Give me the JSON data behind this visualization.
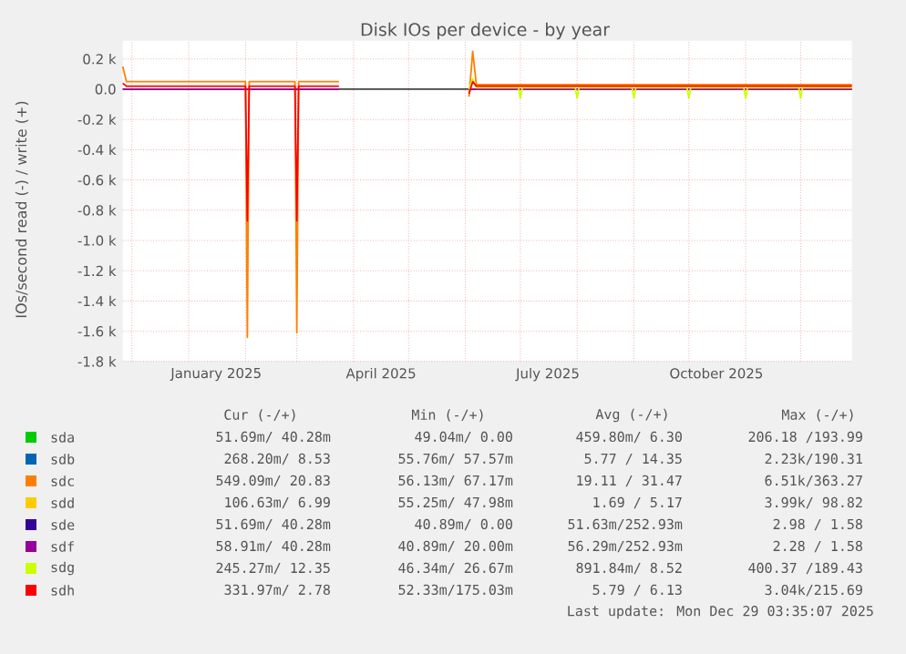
{
  "chart_data": {
    "type": "line",
    "title": "Disk IOs per device - by year",
    "ylabel": "IOs/second read (-) / write (+)",
    "xlim": [
      "2024-11-26",
      "2025-12-29"
    ],
    "ylim": [
      -1.8,
      0.32
    ],
    "xticks": [
      {
        "value": "2024-12-01",
        "label": null
      },
      {
        "value": "2025-01-01",
        "label": null
      },
      {
        "value": "2025-02-01",
        "label": null
      },
      {
        "value": "2025-03-01",
        "label": null
      },
      {
        "value": "2025-04-01",
        "label": null
      },
      {
        "value": "2025-05-01",
        "label": null
      },
      {
        "value": "2025-06-01",
        "label": null
      },
      {
        "value": "2025-07-01",
        "label": null
      },
      {
        "value": "2025-08-01",
        "label": null
      },
      {
        "value": "2025-09-01",
        "label": null
      },
      {
        "value": "2025-10-01",
        "label": null
      },
      {
        "value": "2025-11-01",
        "label": null
      },
      {
        "value": "2025-12-01",
        "label": null
      },
      {
        "value": "2025-01-16",
        "label": "January 2025"
      },
      {
        "value": "2025-04-16",
        "label": "April 2025"
      },
      {
        "value": "2025-07-16",
        "label": "July 2025"
      },
      {
        "value": "2025-10-16",
        "label": "October 2025"
      }
    ],
    "yticks": [
      {
        "value": -1.8,
        "label": "-1.8 k"
      },
      {
        "value": -1.6,
        "label": "-1.6 k"
      },
      {
        "value": -1.4,
        "label": "-1.4 k"
      },
      {
        "value": -1.2,
        "label": "-1.2 k"
      },
      {
        "value": -1.0,
        "label": "-1.0 k"
      },
      {
        "value": -0.8,
        "label": "-0.8 k"
      },
      {
        "value": -0.6,
        "label": "-0.6 k"
      },
      {
        "value": -0.4,
        "label": "-0.4 k"
      },
      {
        "value": -0.2,
        "label": "-0.2 k"
      },
      {
        "value": 0,
        "label": "0.0"
      },
      {
        "value": 0.2,
        "label": "0.2 k"
      }
    ],
    "grid": true,
    "legend": "bottom",
    "marker": "none",
    "line_style": "solid",
    "ref_lines": [
      {
        "axis": "y",
        "value": 0,
        "color": "#000000"
      }
    ],
    "series": [
      {
        "name": "sda",
        "color": "#00cc00"
      },
      {
        "name": "sdb",
        "color": "#0066b3"
      },
      {
        "name": "sdc",
        "color": "#ff8000",
        "x": [
          "2024-11-26",
          "2024-11-28",
          "2025-02-01",
          "2025-02-02",
          "2025-02-03",
          "2025-02-28",
          "2025-03-01",
          "2025-03-02",
          "2025-03-24",
          "2025-03-25",
          "2025-06-03",
          "2025-06-05",
          "2025-06-07",
          "2025-12-29"
        ],
        "values": [
          0.15,
          0.05,
          0.05,
          -1.64,
          0.05,
          0.05,
          -1.61,
          0.05,
          0.05,
          null,
          -0.05,
          0.25,
          0.03,
          0.03
        ]
      },
      {
        "name": "sdd",
        "color": "#ffcc00"
      },
      {
        "name": "sde",
        "color": "#330099"
      },
      {
        "name": "sdf",
        "color": "#990099",
        "x": [
          "2024-11-26",
          "2025-03-24",
          "2025-03-25",
          "2025-06-03",
          "2025-12-29"
        ],
        "values": [
          0.0,
          0.0,
          null,
          0.0,
          0.0
        ]
      },
      {
        "name": "sdg",
        "color": "#ccff00",
        "x": [
          "2025-06-03",
          "2025-06-05",
          "2025-06-07",
          "2025-06-30",
          "2025-07-01",
          "2025-07-02",
          "2025-07-31",
          "2025-08-01",
          "2025-08-02",
          "2025-08-31",
          "2025-09-01",
          "2025-09-02",
          "2025-09-30",
          "2025-10-01",
          "2025-10-02",
          "2025-10-31",
          "2025-11-01",
          "2025-11-02",
          "2025-11-30",
          "2025-12-01",
          "2025-12-02",
          "2025-12-29"
        ],
        "values": [
          0.0,
          0.07,
          0.01,
          0.01,
          -0.06,
          0.01,
          0.01,
          -0.06,
          0.01,
          0.01,
          -0.06,
          0.01,
          0.01,
          -0.06,
          0.01,
          0.01,
          -0.06,
          0.01,
          0.01,
          -0.06,
          0.01,
          0.01
        ]
      },
      {
        "name": "sdh",
        "color": "#ff0000",
        "x": [
          "2024-11-26",
          "2024-11-28",
          "2025-02-01",
          "2025-02-02",
          "2025-02-03",
          "2025-02-28",
          "2025-03-01",
          "2025-03-02",
          "2025-03-24",
          "2025-03-25",
          "2025-06-03",
          "2025-06-05",
          "2025-06-07",
          "2025-12-29"
        ],
        "values": [
          0.04,
          0.02,
          0.02,
          -0.87,
          0.02,
          0.02,
          -0.87,
          0.02,
          0.02,
          null,
          -0.03,
          0.05,
          0.02,
          0.02
        ]
      }
    ],
    "annotations": [
      "Cur (-/+)",
      "Min (-/+)",
      "Avg (-/+)",
      "Max (-/+)",
      "51.69m/ 40.28m",
      "49.04m/ 0.00",
      "459.80m/ 6.30",
      "206.18 /193.99",
      "268.20m/ 8.53",
      "55.76m/ 57.57m",
      "5.77 / 14.35",
      "2.23k/190.31",
      "549.09m/ 20.83",
      "56.13m/ 67.17m",
      "19.11 / 31.47",
      "6.51k/363.27",
      "106.63m/ 6.99",
      "55.25m/ 47.98m",
      "1.69 / 5.17",
      "3.99k/ 98.82",
      "51.69m/ 40.28m",
      "40.89m/ 0.00",
      "51.63m/252.93m",
      "2.98 / 1.58",
      "58.91m/ 40.28m",
      "40.89m/ 20.00m",
      "56.29m/252.93m",
      "2.28 / 1.58",
      "245.27m/ 12.35",
      "46.34m/ 26.67m",
      "891.84m/ 8.52",
      "400.37 /189.43",
      "331.97m/ 2.78",
      "52.33m/175.03m",
      "5.79 / 6.13",
      "3.04k/215.69",
      "Last update: Mon Dec 29 03:35:07 2025"
    ]
  }
}
